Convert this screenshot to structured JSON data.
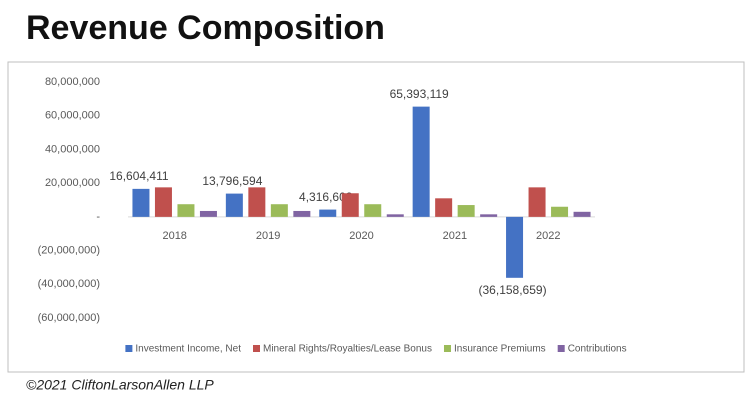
{
  "chart_data": {
    "type": "bar",
    "title": "Revenue Composition",
    "categories": [
      "2018",
      "2019",
      "2020",
      "2021",
      "2022"
    ],
    "series": [
      {
        "name": "Investment Income, Net",
        "color": "#4472c4",
        "values": [
          16604411,
          13796594,
          4316602,
          65393119,
          -36158659
        ],
        "value_labels": [
          "16,604,411",
          "13,796,594",
          "4,316,602",
          "65,393,119",
          "(36,158,659)"
        ]
      },
      {
        "name": "Mineral Rights/Royalties/Lease Bonus",
        "color": "#c0504d",
        "values": [
          17500000,
          17500000,
          14000000,
          11000000,
          17500000
        ]
      },
      {
        "name": "Insurance Premiums",
        "color": "#9bbb59",
        "values": [
          7500000,
          7500000,
          7500000,
          7000000,
          6000000
        ]
      },
      {
        "name": "Contributions",
        "color": "#8064a2",
        "values": [
          3500000,
          3500000,
          1500000,
          1500000,
          3000000
        ]
      }
    ],
    "ylim": [
      -60000000,
      80000000
    ],
    "yticks": [
      {
        "value": -60000000,
        "label": "(60,000,000)"
      },
      {
        "value": -40000000,
        "label": "(40,000,000)"
      },
      {
        "value": -20000000,
        "label": "(20,000,000)"
      },
      {
        "value": 0,
        "label": "-"
      },
      {
        "value": 20000000,
        "label": "20,000,000"
      },
      {
        "value": 40000000,
        "label": "40,000,000"
      },
      {
        "value": 60000000,
        "label": "60,000,000"
      },
      {
        "value": 80000000,
        "label": "80,000,000"
      }
    ],
    "legend": "bottom"
  },
  "footer": "©2021 CliftonLarsonAllen LLP"
}
